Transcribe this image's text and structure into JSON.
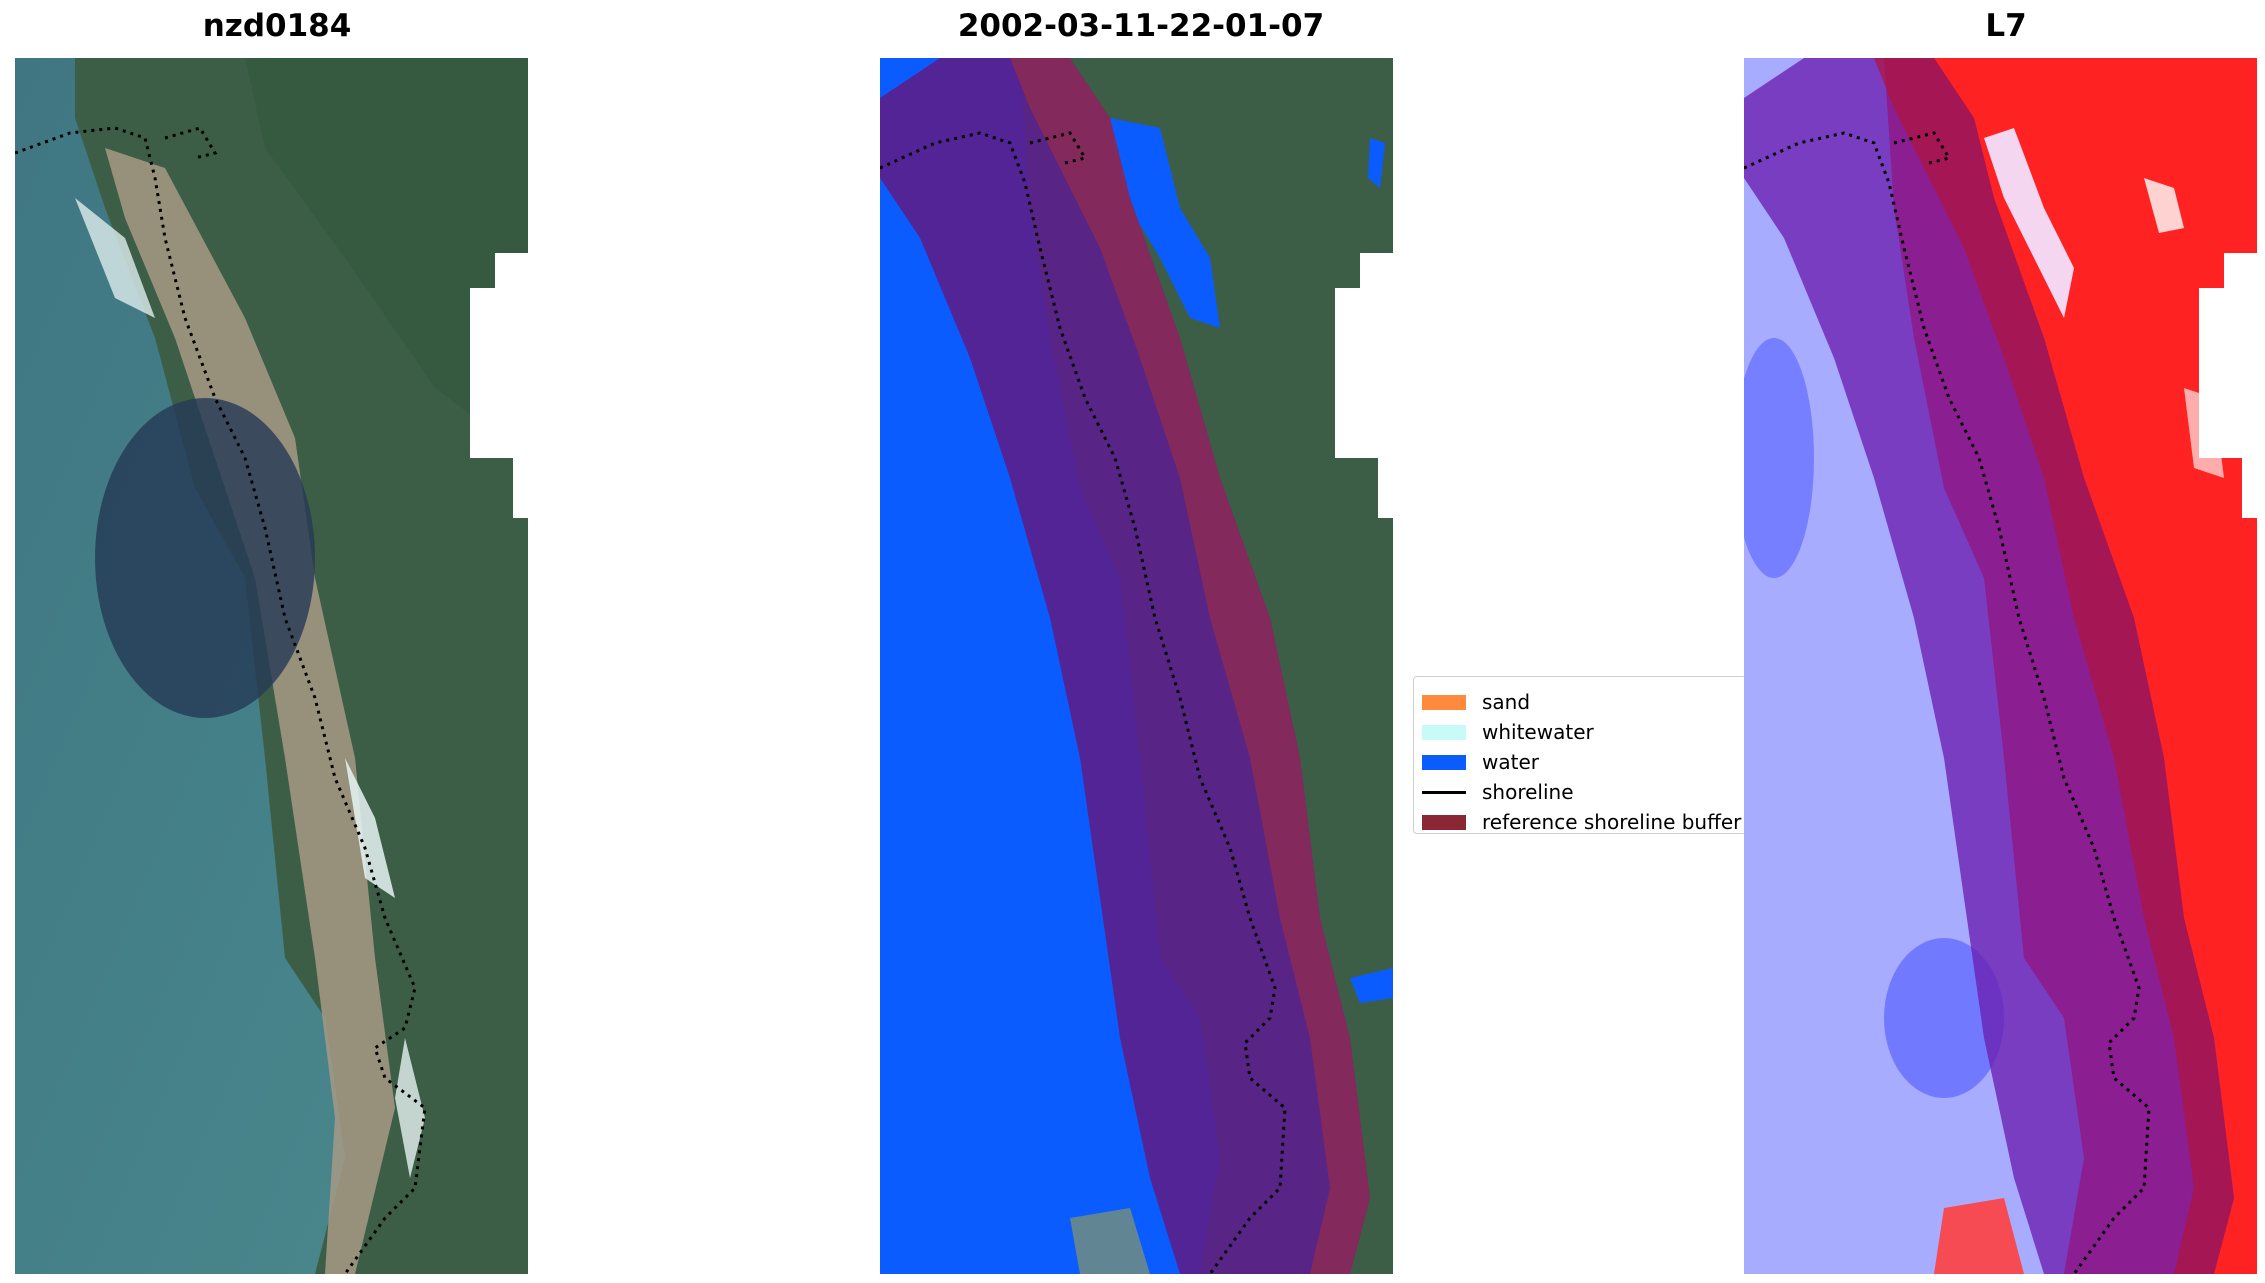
{
  "panels": [
    {
      "title": "nzd0184"
    },
    {
      "title": "2002-03-11-22-01-07"
    },
    {
      "title": "L7"
    }
  ],
  "legend": {
    "items": [
      {
        "label": "sand",
        "color": "#ff8a3d",
        "kind": "patch"
      },
      {
        "label": "whitewater",
        "color": "#c8fbf8",
        "kind": "patch"
      },
      {
        "label": "water",
        "color": "#0a5cff",
        "kind": "patch"
      },
      {
        "label": "shoreline",
        "color": "#000000",
        "kind": "line"
      },
      {
        "label": "reference shoreline buffer",
        "color": "#8b2635",
        "kind": "patch"
      }
    ]
  },
  "colors": {
    "ocean": "#3a6e7a",
    "land": "#3d5e46",
    "beach": "#a79a86",
    "classified_water": "#0a5cff",
    "buffer_overlay": "#5a1f8c",
    "buffer_edge": "#8b2a55",
    "index_negative": "#3a48ff",
    "index_positive": "#ff1010"
  }
}
